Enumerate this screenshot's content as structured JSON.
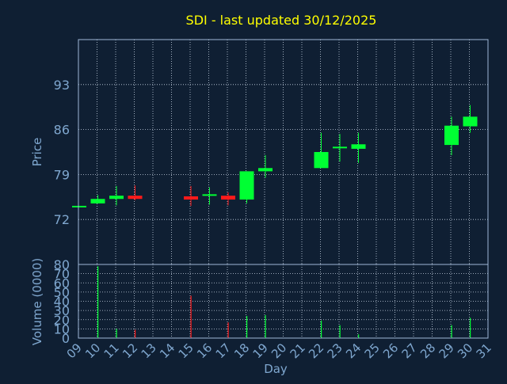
{
  "colors": {
    "background": "#0f1f33",
    "title": "#ffff00",
    "axis_text": "#7fa7cf",
    "frame": "#9fb7d7",
    "grid": "#c8d4e4",
    "up": "#00ff33",
    "down": "#ff1a1a"
  },
  "chart_data": [
    {
      "type": "candlestick",
      "title": "SDI - last updated 30/12/2025",
      "ylabel": "Price",
      "ylim": [
        65,
        100
      ],
      "yticks": [
        72,
        79,
        86,
        93
      ],
      "x_tick_labels": [
        "09",
        "10",
        "11",
        "12",
        "13",
        "14",
        "15",
        "16",
        "17",
        "18",
        "19",
        "20",
        "21",
        "22",
        "23",
        "24",
        "25",
        "26",
        "27",
        "28",
        "29",
        "30",
        "31"
      ],
      "candles": [
        {
          "day": "09",
          "open": 74.0,
          "close": 74.0,
          "high": 74.0,
          "low": 74.0
        },
        {
          "day": "10",
          "open": 74.5,
          "close": 75.2,
          "high": 75.8,
          "low": 74.5
        },
        {
          "day": "11",
          "open": 75.2,
          "close": 75.7,
          "high": 77.2,
          "low": 74.2
        },
        {
          "day": "12",
          "open": 75.7,
          "close": 75.2,
          "high": 77.3,
          "low": 75.0
        },
        {
          "day": "15",
          "open": 75.6,
          "close": 75.1,
          "high": 77.2,
          "low": 74.1
        },
        {
          "day": "16",
          "open": 75.6,
          "close": 75.8,
          "high": 77.0,
          "low": 74.3
        },
        {
          "day": "17",
          "open": 75.7,
          "close": 75.1,
          "high": 76.2,
          "low": 74.2
        },
        {
          "day": "18",
          "open": 75.1,
          "close": 79.5,
          "high": 79.5,
          "low": 74.5
        },
        {
          "day": "19",
          "open": 79.5,
          "close": 80.0,
          "high": 82.0,
          "low": 78.5
        },
        {
          "day": "22",
          "open": 80.0,
          "close": 82.5,
          "high": 85.5,
          "low": 80.0
        },
        {
          "day": "23",
          "open": 83.0,
          "close": 83.2,
          "high": 85.3,
          "low": 81.0
        },
        {
          "day": "24",
          "open": 83.0,
          "close": 83.7,
          "high": 85.5,
          "low": 80.8
        },
        {
          "day": "29",
          "open": 83.6,
          "close": 86.6,
          "high": 88.0,
          "low": 82.0
        },
        {
          "day": "30",
          "open": 86.5,
          "close": 88.0,
          "high": 89.8,
          "low": 85.5
        }
      ]
    },
    {
      "type": "bar",
      "ylabel": "Volume (0000)",
      "xlabel": "Day",
      "ylim": [
        0,
        80
      ],
      "yticks": [
        0,
        10,
        20,
        30,
        40,
        50,
        60,
        70,
        80
      ],
      "values": [
        {
          "day": "10",
          "value": 78,
          "dir": "up"
        },
        {
          "day": "11",
          "value": 10,
          "dir": "up"
        },
        {
          "day": "12",
          "value": 9,
          "dir": "down"
        },
        {
          "day": "15",
          "value": 46,
          "dir": "down"
        },
        {
          "day": "17",
          "value": 17,
          "dir": "down"
        },
        {
          "day": "18",
          "value": 24,
          "dir": "up"
        },
        {
          "day": "19",
          "value": 25,
          "dir": "up"
        },
        {
          "day": "22",
          "value": 19,
          "dir": "up"
        },
        {
          "day": "23",
          "value": 14,
          "dir": "up"
        },
        {
          "day": "24",
          "value": 4,
          "dir": "up"
        },
        {
          "day": "29",
          "value": 14,
          "dir": "up"
        },
        {
          "day": "30",
          "value": 22,
          "dir": "up"
        }
      ]
    }
  ]
}
